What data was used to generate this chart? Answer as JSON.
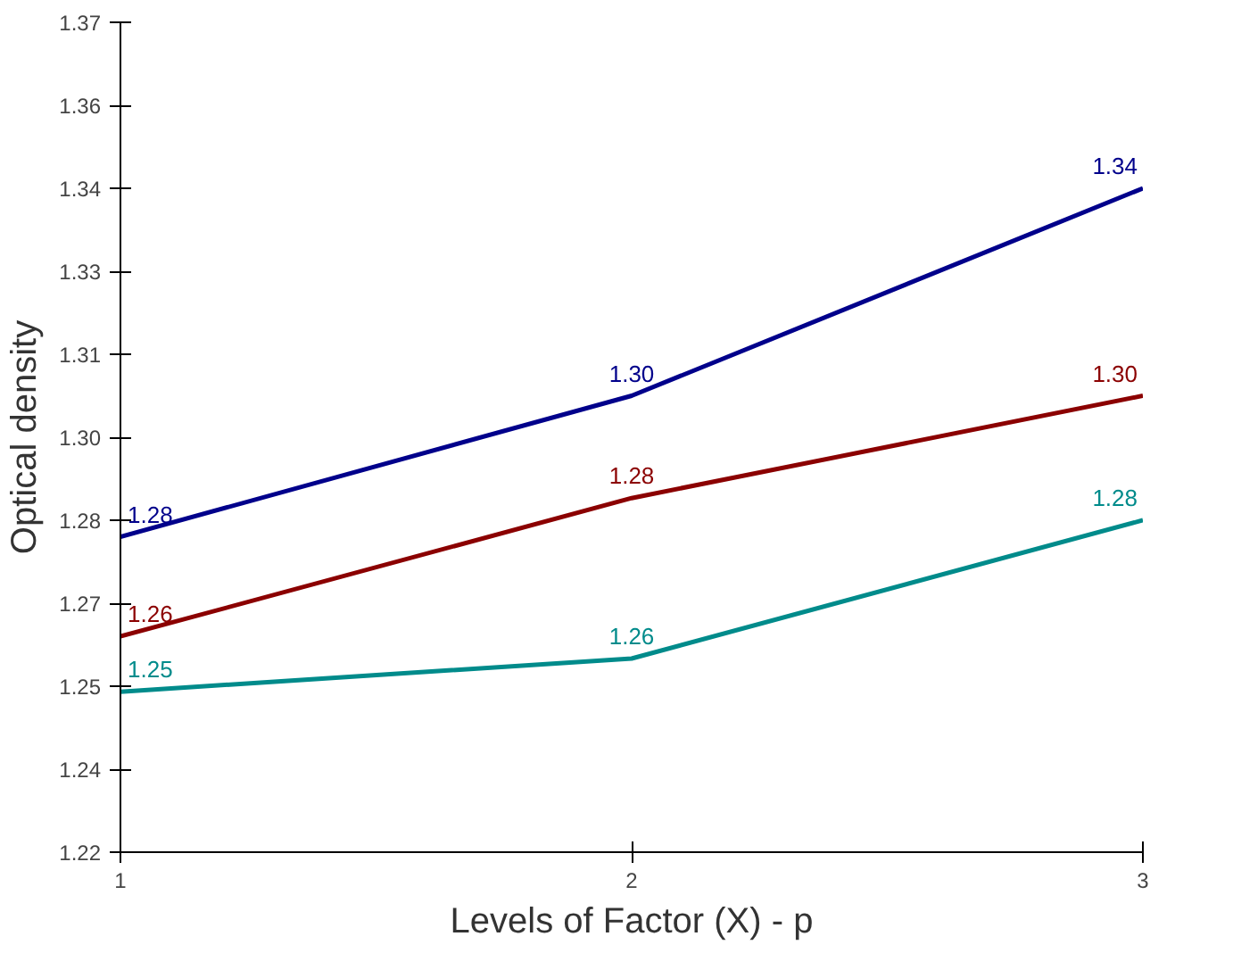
{
  "chart_data": {
    "type": "line",
    "xlabel": "Levels of Factor (X) - p",
    "ylabel": "Optical density",
    "x": [
      1,
      2,
      3
    ],
    "xlim": [
      1,
      3
    ],
    "xticks": [
      1,
      2,
      3
    ],
    "ylim": [
      1.22,
      1.37
    ],
    "yticks": [
      1.22,
      {
        "value": 1.235,
        "label": "1.24"
      },
      1.25,
      {
        "value": 1.265,
        "label": "1.27"
      },
      1.28,
      {
        "value": 1.295,
        "label": "1.30"
      },
      1.31,
      {
        "value": 1.325,
        "label": "1.33"
      },
      1.34,
      {
        "value": 1.355,
        "label": "1.36"
      },
      1.37
    ],
    "grid": false,
    "marker": "none",
    "line_style": "solid",
    "series": [
      {
        "color": "#00008b",
        "values": [
          1.277,
          1.3025,
          1.34
        ],
        "value_labels": [
          "1.28",
          "1.30",
          "1.34"
        ]
      },
      {
        "color": "#8b0000",
        "values": [
          1.259,
          1.284,
          1.3025
        ],
        "value_labels": [
          "1.26",
          "1.28",
          "1.30"
        ]
      },
      {
        "color": "#008b8b",
        "values": [
          1.249,
          1.255,
          1.28
        ],
        "value_labels": [
          "1.25",
          "1.26",
          "1.28"
        ]
      }
    ]
  }
}
